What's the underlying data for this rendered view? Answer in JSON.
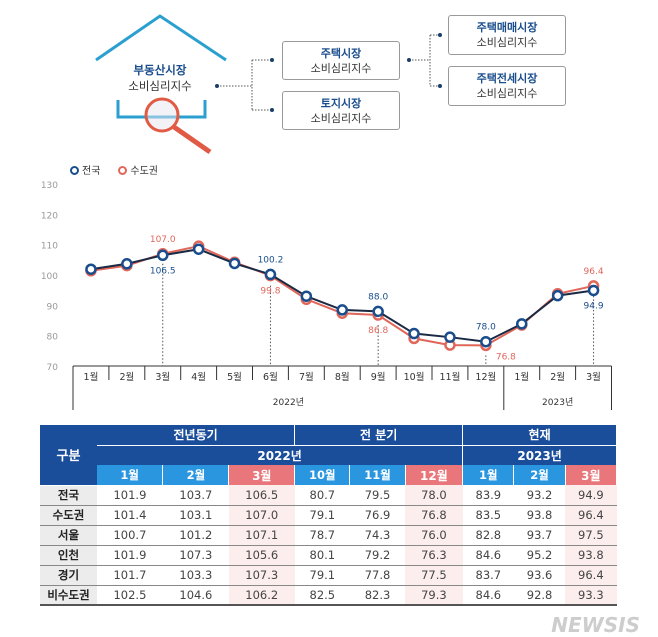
{
  "diagram": {
    "root": [
      "부동산시장",
      "소비심리지수"
    ],
    "housing": [
      "주택시장",
      "소비심리지수"
    ],
    "land": [
      "토지시장",
      "소비심리지수"
    ],
    "sale": [
      "주택매매시장",
      "소비심리지수"
    ],
    "jeonse": [
      "주택전세시장",
      "소비심리지수"
    ]
  },
  "chart_data": {
    "type": "line",
    "legend": [
      "전국",
      "수도권"
    ],
    "legend_position": "top-left",
    "colors": {
      "전국": "#1a4d8c",
      "수도권": "#e0665a"
    },
    "x": [
      "1월",
      "2월",
      "3월",
      "4월",
      "5월",
      "6월",
      "7월",
      "8월",
      "9월",
      "10월",
      "11월",
      "12월",
      "1월",
      "2월",
      "3월"
    ],
    "year_groups": [
      {
        "label": "2022년",
        "count": 12
      },
      {
        "label": "2023년",
        "count": 3
      }
    ],
    "ylim": [
      70,
      130
    ],
    "yticks": [
      "70",
      "80",
      "90",
      "100",
      "110",
      "120",
      "130"
    ],
    "series": [
      {
        "name": "전국",
        "values": [
          101.9,
          103.7,
          106.5,
          108.5,
          103.8,
          100.2,
          93.0,
          88.5,
          88.0,
          80.7,
          79.5,
          78.0,
          83.9,
          93.2,
          94.9
        ]
      },
      {
        "name": "수도권",
        "values": [
          101.4,
          103.1,
          107.0,
          109.5,
          104.2,
          99.8,
          92.0,
          87.4,
          86.8,
          79.1,
          76.9,
          76.8,
          83.5,
          93.8,
          96.4
        ]
      }
    ],
    "annotations": [
      {
        "series": "수도권",
        "index": 2,
        "text": "107.0",
        "pos": "above"
      },
      {
        "series": "전국",
        "index": 2,
        "text": "106.5",
        "pos": "below"
      },
      {
        "series": "전국",
        "index": 5,
        "text": "100.2",
        "pos": "above"
      },
      {
        "series": "수도권",
        "index": 5,
        "text": "99.8",
        "pos": "below"
      },
      {
        "series": "전국",
        "index": 8,
        "text": "88.0",
        "pos": "above"
      },
      {
        "series": "수도권",
        "index": 8,
        "text": "86.8",
        "pos": "below"
      },
      {
        "series": "전국",
        "index": 11,
        "text": "78.0",
        "pos": "above"
      },
      {
        "series": "수도권",
        "index": 11,
        "text": "76.8",
        "pos": "right"
      },
      {
        "series": "수도권",
        "index": 14,
        "text": "96.4",
        "pos": "above"
      },
      {
        "series": "전국",
        "index": 14,
        "text": "94.9",
        "pos": "below"
      }
    ]
  },
  "table": {
    "corner": "구분",
    "groups": [
      "전년동기",
      "전 분기",
      "현재"
    ],
    "years": [
      "2022년",
      "2023년"
    ],
    "months": [
      "1월",
      "2월",
      "3월",
      "10월",
      "11월",
      "12월",
      "1월",
      "2월",
      "3월"
    ],
    "rows": [
      {
        "label": "전국",
        "values": [
          "101.9",
          "103.7",
          "106.5",
          "80.7",
          "79.5",
          "78.0",
          "83.9",
          "93.2",
          "94.9"
        ]
      },
      {
        "label": "수도권",
        "values": [
          "101.4",
          "103.1",
          "107.0",
          "79.1",
          "76.9",
          "76.8",
          "83.5",
          "93.8",
          "96.4"
        ]
      },
      {
        "label": "서울",
        "values": [
          "100.7",
          "101.2",
          "107.1",
          "78.7",
          "74.3",
          "76.0",
          "82.8",
          "93.7",
          "97.5"
        ]
      },
      {
        "label": "인천",
        "values": [
          "101.9",
          "107.3",
          "105.6",
          "80.1",
          "79.2",
          "76.3",
          "84.6",
          "95.2",
          "93.8"
        ]
      },
      {
        "label": "경기",
        "values": [
          "101.7",
          "103.3",
          "107.3",
          "79.1",
          "77.8",
          "77.5",
          "83.7",
          "93.6",
          "96.4"
        ]
      },
      {
        "label": "비수도권",
        "values": [
          "102.5",
          "104.6",
          "106.2",
          "82.5",
          "82.3",
          "79.3",
          "84.6",
          "92.8",
          "93.3"
        ]
      }
    ]
  },
  "watermark": "NEWSIS"
}
